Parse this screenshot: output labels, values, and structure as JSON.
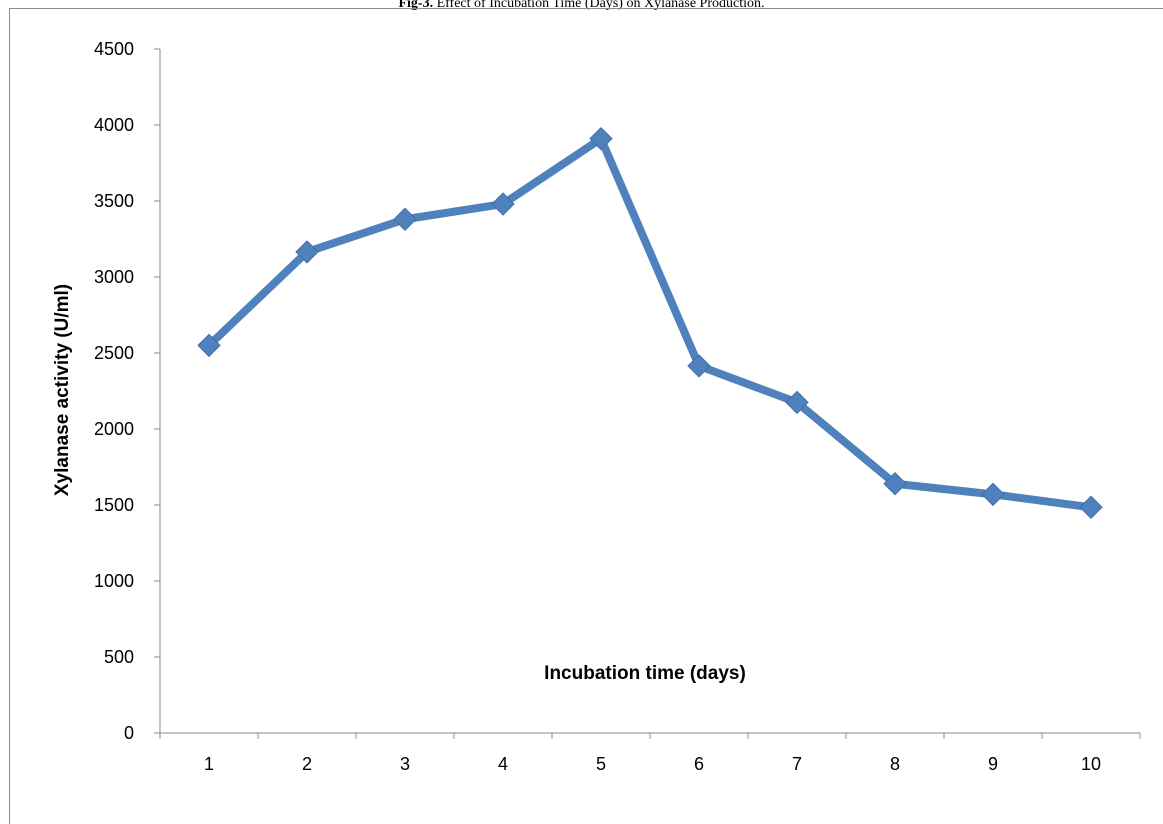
{
  "caption": {
    "prefix": "Fig-3.",
    "text": "Effect of Incubation Time (Days) on Xylanase Production."
  },
  "chart_data": {
    "type": "line",
    "title": "",
    "xlabel": "Incubation time (days)",
    "ylabel": "Xylanase activity  (U/ml)",
    "categories": [
      "1",
      "2",
      "3",
      "4",
      "5",
      "6",
      "7",
      "8",
      "9",
      "10"
    ],
    "series": [
      {
        "values": [
          2550,
          3165,
          3380,
          3480,
          3910,
          2415,
          2175,
          1640,
          1570,
          1485
        ],
        "color": "#4f81bd",
        "marker": "diamond"
      }
    ],
    "ylim": [
      0,
      4500
    ],
    "yticks": [
      "0",
      "500",
      "1000",
      "1500",
      "2000",
      "2500",
      "3000",
      "3500",
      "4000",
      "4500"
    ],
    "grid": false,
    "legend": "none"
  }
}
